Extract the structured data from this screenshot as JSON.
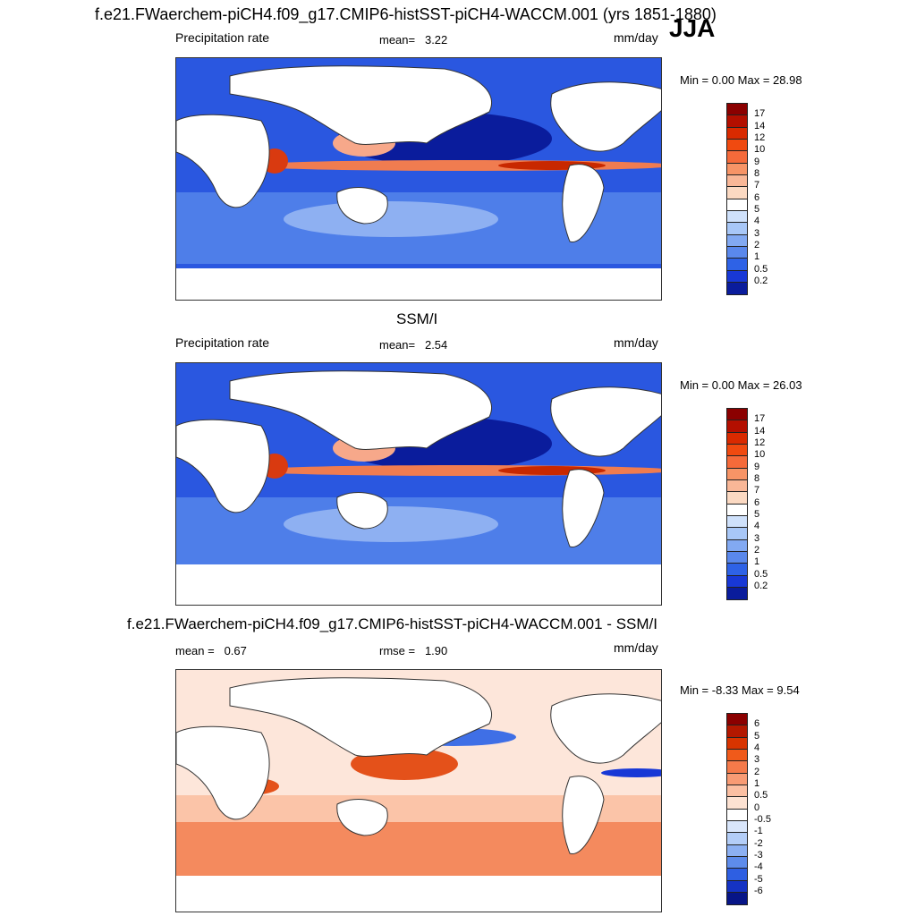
{
  "header": {
    "title": "f.e21.FWaerchem-piCH4.f09_g17.CMIP6-histSST-piCH4-WACCM.001 (yrs 1851-1880)",
    "season": "JJA"
  },
  "panels": [
    {
      "label": "Precipitation rate",
      "mean_label": "mean=",
      "mean_value": "3.22",
      "units": "mm/day",
      "minmax": "Min =   0.00 Max =  28.98",
      "colorbar_labels": [
        "17",
        "14",
        "12",
        "10",
        "9",
        "8",
        "7",
        "6",
        "5",
        "4",
        "3",
        "2",
        "1",
        "0.5",
        "0.2"
      ],
      "colorbar_colors": [
        "#8b0000",
        "#b30f00",
        "#d92a00",
        "#f04a10",
        "#f56a3a",
        "#f79466",
        "#f9b797",
        "#fbd9c2",
        "#ffffff",
        "#cfe1fb",
        "#a8c7f7",
        "#82a9f2",
        "#5a88ec",
        "#2e62e6",
        "#1838d6",
        "#0a1c9c"
      ]
    },
    {
      "subtitle": "SSM/I",
      "label": "Precipitation rate",
      "mean_label": "mean=",
      "mean_value": "2.54",
      "units": "mm/day",
      "minmax": "Min =   0.00 Max =  26.03",
      "colorbar_labels": [
        "17",
        "14",
        "12",
        "10",
        "9",
        "8",
        "7",
        "6",
        "5",
        "4",
        "3",
        "2",
        "1",
        "0.5",
        "0.2"
      ],
      "colorbar_colors": [
        "#8b0000",
        "#b30f00",
        "#d92a00",
        "#f04a10",
        "#f56a3a",
        "#f79466",
        "#f9b797",
        "#fbd9c2",
        "#ffffff",
        "#cfe1fb",
        "#a8c7f7",
        "#82a9f2",
        "#5a88ec",
        "#2e62e6",
        "#1838d6",
        "#0a1c9c"
      ]
    },
    {
      "subtitle": "f.e21.FWaerchem-piCH4.f09_g17.CMIP6-histSST-piCH4-WACCM.001 - SSM/I",
      "label": "mean =",
      "mean_value": "0.67",
      "rmse_label": "rmse =",
      "rmse_value": "1.90",
      "units": "mm/day",
      "minmax": "Min =  -8.33 Max =   9.54",
      "colorbar_labels": [
        "6",
        "5",
        "4",
        "3",
        "2",
        "1",
        "0.5",
        "0",
        "-0.5",
        "-1",
        "-2",
        "-3",
        "-4",
        "-5",
        "-6"
      ],
      "colorbar_colors": [
        "#8b0000",
        "#b31800",
        "#d83400",
        "#f05a1a",
        "#f57a4a",
        "#f89b74",
        "#fbbfa2",
        "#fde2d2",
        "#ffffff",
        "#d9e6fb",
        "#b3cdf7",
        "#8cb0f2",
        "#5e8ceb",
        "#2e5fe2",
        "#1533c4",
        "#071587"
      ]
    }
  ]
}
